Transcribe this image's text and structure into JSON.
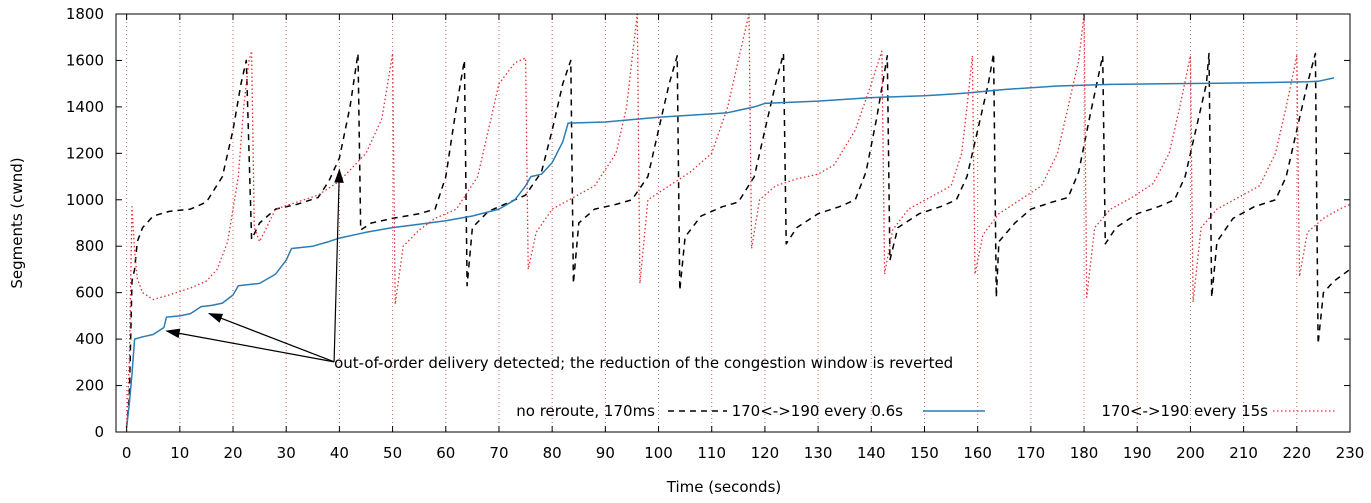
{
  "chart_data": {
    "type": "line",
    "title": "",
    "xlabel": "Time (seconds)",
    "ylabel": "Segments (cwnd)",
    "xlim": [
      -2,
      230
    ],
    "ylim": [
      0,
      1800
    ],
    "xticks": [
      0,
      10,
      20,
      30,
      40,
      50,
      60,
      70,
      80,
      90,
      100,
      110,
      120,
      130,
      140,
      150,
      160,
      170,
      180,
      190,
      200,
      210,
      220,
      230
    ],
    "yticks": [
      0,
      200,
      400,
      600,
      800,
      1000,
      1200,
      1400,
      1600,
      1800
    ],
    "grid": "x-dotted",
    "legend_position": "bottom-right",
    "colors": {
      "no_reroute": "#000000",
      "reroute_06": "#2a7db5",
      "reroute_15": "#e03030",
      "grid": "#cc6666"
    },
    "annotation": {
      "text": "out-of-order delivery detected; the reduction of the congestion window is reverted",
      "targets": [
        [
          7.5,
          435
        ],
        [
          15.5,
          510
        ],
        [
          40,
          1130
        ]
      ],
      "origin": [
        39,
        302
      ]
    },
    "series": [
      {
        "name": "no reroute, 170ms",
        "style": "dashed",
        "points": [
          [
            0,
            20
          ],
          [
            0.5,
            150
          ],
          [
            1,
            650
          ],
          [
            1.5,
            700
          ],
          [
            2,
            820
          ],
          [
            3,
            880
          ],
          [
            5,
            930
          ],
          [
            8,
            950
          ],
          [
            12,
            960
          ],
          [
            15,
            990
          ],
          [
            18,
            1100
          ],
          [
            20,
            1300
          ],
          [
            21.5,
            1500
          ],
          [
            22.5,
            1600
          ],
          [
            23.5,
            830
          ],
          [
            25,
            900
          ],
          [
            28,
            960
          ],
          [
            32,
            980
          ],
          [
            36,
            1010
          ],
          [
            38,
            1080
          ],
          [
            40,
            1180
          ],
          [
            42,
            1400
          ],
          [
            43.5,
            1630
          ],
          [
            44,
            870
          ],
          [
            46,
            900
          ],
          [
            50,
            920
          ],
          [
            55,
            940
          ],
          [
            58,
            960
          ],
          [
            60,
            1100
          ],
          [
            62,
            1400
          ],
          [
            63.5,
            1600
          ],
          [
            64,
            630
          ],
          [
            65,
            880
          ],
          [
            68,
            950
          ],
          [
            72,
            990
          ],
          [
            75,
            1020
          ],
          [
            78,
            1120
          ],
          [
            80,
            1300
          ],
          [
            82,
            1500
          ],
          [
            83.5,
            1600
          ],
          [
            84,
            640
          ],
          [
            85,
            900
          ],
          [
            88,
            960
          ],
          [
            92,
            980
          ],
          [
            95,
            1000
          ],
          [
            98,
            1100
          ],
          [
            100,
            1300
          ],
          [
            102,
            1500
          ],
          [
            103.5,
            1620
          ],
          [
            104,
            610
          ],
          [
            105,
            840
          ],
          [
            108,
            930
          ],
          [
            112,
            970
          ],
          [
            115,
            990
          ],
          [
            118,
            1100
          ],
          [
            120,
            1300
          ],
          [
            122,
            1500
          ],
          [
            123.5,
            1630
          ],
          [
            124,
            810
          ],
          [
            126,
            880
          ],
          [
            130,
            940
          ],
          [
            134,
            970
          ],
          [
            137,
            1000
          ],
          [
            139,
            1120
          ],
          [
            141,
            1350
          ],
          [
            143,
            1620
          ],
          [
            143.5,
            740
          ],
          [
            145,
            880
          ],
          [
            149,
            940
          ],
          [
            153,
            970
          ],
          [
            156,
            1000
          ],
          [
            158,
            1100
          ],
          [
            160,
            1300
          ],
          [
            162,
            1500
          ],
          [
            163,
            1630
          ],
          [
            163.5,
            580
          ],
          [
            164,
            820
          ],
          [
            167,
            900
          ],
          [
            170,
            960
          ],
          [
            174,
            990
          ],
          [
            177,
            1010
          ],
          [
            179,
            1120
          ],
          [
            181,
            1350
          ],
          [
            183.5,
            1620
          ],
          [
            184,
            810
          ],
          [
            186,
            880
          ],
          [
            190,
            940
          ],
          [
            194,
            970
          ],
          [
            197,
            1000
          ],
          [
            199,
            1100
          ],
          [
            201,
            1300
          ],
          [
            203,
            1500
          ],
          [
            203.5,
            1630
          ],
          [
            204,
            580
          ],
          [
            205,
            820
          ],
          [
            208,
            920
          ],
          [
            212,
            970
          ],
          [
            216,
            1000
          ],
          [
            218,
            1100
          ],
          [
            220,
            1300
          ],
          [
            222,
            1500
          ],
          [
            223.5,
            1630
          ],
          [
            224,
            380
          ],
          [
            225,
            600
          ],
          [
            227,
            650
          ],
          [
            230,
            700
          ]
        ]
      },
      {
        "name": "170<->190 every 0.6s",
        "style": "solid",
        "points": [
          [
            0,
            20
          ],
          [
            0.5,
            120
          ],
          [
            1,
            250
          ],
          [
            1.5,
            400
          ],
          [
            3,
            410
          ],
          [
            5,
            420
          ],
          [
            7,
            450
          ],
          [
            7.5,
            495
          ],
          [
            10,
            500
          ],
          [
            12,
            510
          ],
          [
            14,
            540
          ],
          [
            16,
            545
          ],
          [
            18,
            555
          ],
          [
            20,
            590
          ],
          [
            21,
            630
          ],
          [
            25,
            640
          ],
          [
            28,
            680
          ],
          [
            30,
            740
          ],
          [
            31,
            790
          ],
          [
            35,
            800
          ],
          [
            38,
            820
          ],
          [
            40,
            835
          ],
          [
            45,
            860
          ],
          [
            50,
            880
          ],
          [
            55,
            895
          ],
          [
            60,
            910
          ],
          [
            65,
            930
          ],
          [
            70,
            960
          ],
          [
            73,
            1000
          ],
          [
            75,
            1060
          ],
          [
            76,
            1100
          ],
          [
            78,
            1110
          ],
          [
            80,
            1160
          ],
          [
            82,
            1250
          ],
          [
            83,
            1330
          ],
          [
            90,
            1335
          ],
          [
            100,
            1355
          ],
          [
            110,
            1370
          ],
          [
            113,
            1375
          ],
          [
            115,
            1385
          ],
          [
            118,
            1400
          ],
          [
            120,
            1415
          ],
          [
            130,
            1425
          ],
          [
            140,
            1440
          ],
          [
            150,
            1448
          ],
          [
            155,
            1455
          ],
          [
            158,
            1460
          ],
          [
            165,
            1475
          ],
          [
            175,
            1490
          ],
          [
            185,
            1497
          ],
          [
            195,
            1500
          ],
          [
            205,
            1502
          ],
          [
            215,
            1505
          ],
          [
            222,
            1508
          ],
          [
            224,
            1510
          ],
          [
            225,
            1515
          ],
          [
            227,
            1525
          ]
        ]
      },
      {
        "name": "170<->190 every 15s",
        "style": "dotted",
        "points": [
          [
            0,
            20
          ],
          [
            0.5,
            300
          ],
          [
            1,
            970
          ],
          [
            1.5,
            780
          ],
          [
            2,
            660
          ],
          [
            3,
            600
          ],
          [
            5,
            570
          ],
          [
            8,
            590
          ],
          [
            12,
            620
          ],
          [
            15,
            650
          ],
          [
            17,
            700
          ],
          [
            19,
            820
          ],
          [
            21,
            1100
          ],
          [
            22,
            1400
          ],
          [
            23,
            1600
          ],
          [
            23.5,
            1640
          ],
          [
            24,
            880
          ],
          [
            25,
            820
          ],
          [
            28,
            960
          ],
          [
            32,
            990
          ],
          [
            36,
            1020
          ],
          [
            40,
            1080
          ],
          [
            45,
            1200
          ],
          [
            48,
            1350
          ],
          [
            50,
            1630
          ],
          [
            50.5,
            550
          ],
          [
            52,
            800
          ],
          [
            55,
            870
          ],
          [
            58,
            920
          ],
          [
            62,
            960
          ],
          [
            66,
            1100
          ],
          [
            70,
            1500
          ],
          [
            73,
            1590
          ],
          [
            75,
            1610
          ],
          [
            75.5,
            700
          ],
          [
            77,
            860
          ],
          [
            80,
            960
          ],
          [
            84,
            1010
          ],
          [
            88,
            1060
          ],
          [
            92,
            1200
          ],
          [
            94,
            1400
          ],
          [
            95,
            1600
          ],
          [
            96,
            1800
          ],
          [
            96.5,
            640
          ],
          [
            98,
            1000
          ],
          [
            102,
            1060
          ],
          [
            106,
            1120
          ],
          [
            110,
            1200
          ],
          [
            113,
            1400
          ],
          [
            115,
            1600
          ],
          [
            117,
            1800
          ],
          [
            117.5,
            790
          ],
          [
            119,
            1000
          ],
          [
            122,
            1060
          ],
          [
            126,
            1090
          ],
          [
            130,
            1110
          ],
          [
            133,
            1150
          ],
          [
            137,
            1300
          ],
          [
            140,
            1500
          ],
          [
            142,
            1640
          ],
          [
            142.5,
            680
          ],
          [
            144,
            870
          ],
          [
            147,
            960
          ],
          [
            151,
            1010
          ],
          [
            155,
            1060
          ],
          [
            157,
            1200
          ],
          [
            158,
            1400
          ],
          [
            159,
            1620
          ],
          [
            159.5,
            680
          ],
          [
            161,
            850
          ],
          [
            164,
            940
          ],
          [
            168,
            1000
          ],
          [
            172,
            1060
          ],
          [
            175,
            1200
          ],
          [
            177,
            1400
          ],
          [
            179,
            1600
          ],
          [
            180,
            1800
          ],
          [
            180.5,
            580
          ],
          [
            182,
            880
          ],
          [
            185,
            960
          ],
          [
            189,
            1010
          ],
          [
            193,
            1070
          ],
          [
            196,
            1200
          ],
          [
            198,
            1400
          ],
          [
            200,
            1620
          ],
          [
            200.5,
            560
          ],
          [
            202,
            880
          ],
          [
            205,
            960
          ],
          [
            209,
            1010
          ],
          [
            213,
            1060
          ],
          [
            216,
            1200
          ],
          [
            218,
            1400
          ],
          [
            220,
            1620
          ],
          [
            220.5,
            670
          ],
          [
            222,
            860
          ],
          [
            225,
            920
          ],
          [
            228,
            960
          ],
          [
            230,
            980
          ]
        ]
      }
    ]
  }
}
